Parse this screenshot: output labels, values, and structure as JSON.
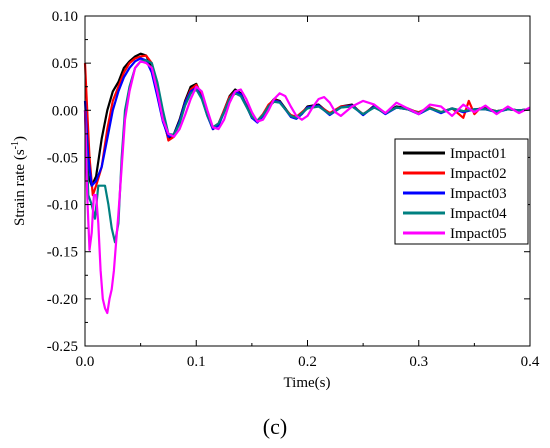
{
  "caption": "(c)",
  "chart_data": {
    "type": "line",
    "title": "",
    "xlabel": "Time(s)",
    "ylabel_main": "Strain rate (s",
    "ylabel_sup": "-1",
    "ylabel_close": ")",
    "xlim": [
      0.0,
      0.4
    ],
    "ylim": [
      -0.25,
      0.1
    ],
    "xticks": [
      0.0,
      0.1,
      0.2,
      0.3,
      0.4
    ],
    "xtick_labels": [
      "0.0",
      "0.1",
      "0.2",
      "0.3",
      "0.4"
    ],
    "yticks": [
      0.1,
      0.05,
      0.0,
      -0.05,
      -0.1,
      -0.15,
      -0.2,
      -0.25
    ],
    "ytick_labels": [
      "0.10",
      "0.05",
      "0.00",
      "-0.05",
      "-0.10",
      "-0.15",
      "-0.20",
      "-0.25"
    ],
    "grid": false,
    "legend_position": "right",
    "series": [
      {
        "name": "Impact01",
        "color": "#000000",
        "x": [
          0.0,
          0.003,
          0.006,
          0.01,
          0.015,
          0.02,
          0.025,
          0.03,
          0.035,
          0.04,
          0.045,
          0.05,
          0.055,
          0.06,
          0.065,
          0.07,
          0.075,
          0.08,
          0.085,
          0.09,
          0.095,
          0.1,
          0.105,
          0.11,
          0.115,
          0.12,
          0.125,
          0.13,
          0.135,
          0.14,
          0.145,
          0.15,
          0.155,
          0.16,
          0.165,
          0.17,
          0.175,
          0.18,
          0.185,
          0.19,
          0.195,
          0.2,
          0.21,
          0.22,
          0.23,
          0.24,
          0.25,
          0.26,
          0.27,
          0.28,
          0.29,
          0.3,
          0.31,
          0.32,
          0.33,
          0.34,
          0.35,
          0.36,
          0.37,
          0.38,
          0.39,
          0.4
        ],
        "y": [
          0.0,
          -0.07,
          -0.08,
          -0.07,
          -0.03,
          0.0,
          0.02,
          0.03,
          0.045,
          0.052,
          0.057,
          0.06,
          0.058,
          0.045,
          0.02,
          -0.01,
          -0.03,
          -0.025,
          -0.01,
          0.01,
          0.025,
          0.028,
          0.015,
          -0.005,
          -0.02,
          -0.015,
          0.0,
          0.015,
          0.022,
          0.018,
          0.005,
          -0.008,
          -0.012,
          -0.005,
          0.005,
          0.012,
          0.01,
          0.002,
          -0.006,
          -0.008,
          -0.003,
          0.004,
          0.006,
          -0.004,
          0.004,
          0.006,
          -0.005,
          0.005,
          -0.003,
          0.004,
          0.002,
          -0.003,
          0.003,
          -0.002,
          0.002,
          -0.001,
          0.001,
          0.002,
          -0.001,
          0.001,
          0.0,
          0.001
        ]
      },
      {
        "name": "Impact02",
        "color": "#ff0000",
        "x": [
          0.0,
          0.002,
          0.004,
          0.007,
          0.01,
          0.015,
          0.02,
          0.025,
          0.03,
          0.035,
          0.04,
          0.045,
          0.05,
          0.055,
          0.06,
          0.065,
          0.07,
          0.075,
          0.08,
          0.085,
          0.09,
          0.095,
          0.1,
          0.105,
          0.11,
          0.115,
          0.12,
          0.125,
          0.13,
          0.135,
          0.14,
          0.145,
          0.15,
          0.155,
          0.16,
          0.165,
          0.17,
          0.175,
          0.18,
          0.185,
          0.19,
          0.2,
          0.21,
          0.22,
          0.23,
          0.24,
          0.25,
          0.26,
          0.27,
          0.28,
          0.29,
          0.3,
          0.31,
          0.32,
          0.33,
          0.34,
          0.345,
          0.35,
          0.355,
          0.36,
          0.37,
          0.38,
          0.39,
          0.4
        ],
        "y": [
          0.05,
          0.0,
          -0.05,
          -0.09,
          -0.08,
          -0.06,
          -0.02,
          0.01,
          0.025,
          0.04,
          0.05,
          0.055,
          0.057,
          0.058,
          0.05,
          0.025,
          -0.005,
          -0.032,
          -0.028,
          -0.012,
          0.008,
          0.022,
          0.027,
          0.016,
          -0.004,
          -0.018,
          -0.014,
          0.0,
          0.014,
          0.02,
          0.017,
          0.006,
          -0.007,
          -0.011,
          -0.004,
          0.006,
          0.011,
          0.009,
          0.001,
          -0.005,
          -0.007,
          0.003,
          0.005,
          -0.003,
          0.004,
          0.005,
          -0.004,
          0.004,
          -0.003,
          0.003,
          0.001,
          -0.002,
          0.003,
          -0.002,
          0.002,
          -0.008,
          0.01,
          -0.004,
          0.002,
          0.001,
          -0.001,
          0.001,
          0.0,
          0.001
        ]
      },
      {
        "name": "Impact03",
        "color": "#0000ff",
        "x": [
          0.0,
          0.003,
          0.006,
          0.01,
          0.015,
          0.02,
          0.025,
          0.03,
          0.035,
          0.04,
          0.045,
          0.05,
          0.055,
          0.06,
          0.065,
          0.07,
          0.075,
          0.08,
          0.085,
          0.09,
          0.095,
          0.1,
          0.105,
          0.11,
          0.115,
          0.12,
          0.125,
          0.13,
          0.135,
          0.14,
          0.145,
          0.15,
          0.155,
          0.16,
          0.165,
          0.17,
          0.175,
          0.18,
          0.185,
          0.19,
          0.195,
          0.2,
          0.21,
          0.22,
          0.23,
          0.24,
          0.25,
          0.26,
          0.27,
          0.28,
          0.29,
          0.3,
          0.31,
          0.32,
          0.33,
          0.34,
          0.35,
          0.36,
          0.37,
          0.38,
          0.39,
          0.4
        ],
        "y": [
          0.01,
          -0.05,
          -0.08,
          -0.075,
          -0.06,
          -0.03,
          0.0,
          0.02,
          0.035,
          0.045,
          0.052,
          0.055,
          0.053,
          0.04,
          0.015,
          -0.012,
          -0.028,
          -0.026,
          -0.012,
          0.008,
          0.02,
          0.024,
          0.013,
          -0.006,
          -0.02,
          -0.016,
          -0.002,
          0.012,
          0.02,
          0.017,
          0.005,
          -0.008,
          -0.013,
          -0.006,
          0.004,
          0.01,
          0.009,
          0.001,
          -0.007,
          -0.009,
          -0.004,
          0.003,
          0.005,
          -0.005,
          0.003,
          0.005,
          -0.005,
          0.004,
          -0.004,
          0.003,
          0.001,
          -0.004,
          0.002,
          -0.003,
          0.002,
          -0.002,
          0.001,
          0.001,
          -0.002,
          0.001,
          0.0,
          0.001
        ]
      },
      {
        "name": "Impact04",
        "color": "#008080",
        "x": [
          0.0,
          0.003,
          0.006,
          0.009,
          0.012,
          0.015,
          0.018,
          0.021,
          0.024,
          0.027,
          0.03,
          0.033,
          0.036,
          0.04,
          0.045,
          0.05,
          0.055,
          0.06,
          0.065,
          0.07,
          0.075,
          0.08,
          0.085,
          0.09,
          0.095,
          0.1,
          0.105,
          0.11,
          0.115,
          0.12,
          0.125,
          0.13,
          0.135,
          0.14,
          0.145,
          0.15,
          0.155,
          0.16,
          0.165,
          0.17,
          0.175,
          0.18,
          0.185,
          0.19,
          0.2,
          0.21,
          0.22,
          0.23,
          0.24,
          0.25,
          0.26,
          0.27,
          0.28,
          0.29,
          0.3,
          0.31,
          0.32,
          0.33,
          0.34,
          0.35,
          0.36,
          0.37,
          0.38,
          0.39,
          0.4
        ],
        "y": [
          0.0,
          -0.09,
          -0.1,
          -0.115,
          -0.08,
          -0.08,
          -0.08,
          -0.1,
          -0.125,
          -0.14,
          -0.12,
          -0.05,
          0.0,
          0.025,
          0.045,
          0.052,
          0.053,
          0.05,
          0.03,
          0.0,
          -0.025,
          -0.026,
          -0.014,
          0.005,
          0.018,
          0.022,
          0.012,
          -0.006,
          -0.018,
          -0.014,
          -0.002,
          0.012,
          0.018,
          0.015,
          0.004,
          -0.007,
          -0.011,
          -0.005,
          0.004,
          0.009,
          0.008,
          0.001,
          -0.006,
          -0.008,
          0.002,
          0.004,
          -0.004,
          0.003,
          0.004,
          -0.004,
          0.003,
          -0.003,
          0.003,
          0.001,
          -0.003,
          0.002,
          -0.002,
          0.002,
          -0.001,
          0.001,
          0.001,
          -0.001,
          0.001,
          0.0,
          0.001
        ]
      },
      {
        "name": "Impact05",
        "color": "#ff00ff",
        "x": [
          0.0,
          0.002,
          0.004,
          0.006,
          0.008,
          0.01,
          0.012,
          0.014,
          0.016,
          0.018,
          0.02,
          0.022,
          0.024,
          0.026,
          0.028,
          0.03,
          0.033,
          0.036,
          0.04,
          0.045,
          0.05,
          0.055,
          0.06,
          0.065,
          0.07,
          0.075,
          0.08,
          0.085,
          0.09,
          0.095,
          0.1,
          0.105,
          0.11,
          0.115,
          0.12,
          0.125,
          0.13,
          0.135,
          0.14,
          0.145,
          0.15,
          0.155,
          0.16,
          0.165,
          0.17,
          0.175,
          0.18,
          0.185,
          0.19,
          0.195,
          0.2,
          0.205,
          0.21,
          0.215,
          0.22,
          0.225,
          0.23,
          0.24,
          0.25,
          0.26,
          0.27,
          0.28,
          0.29,
          0.3,
          0.31,
          0.32,
          0.33,
          0.34,
          0.35,
          0.36,
          0.37,
          0.38,
          0.39,
          0.4
        ],
        "y": [
          0.0,
          -0.09,
          -0.148,
          -0.13,
          -0.09,
          -0.09,
          -0.12,
          -0.17,
          -0.2,
          -0.21,
          -0.215,
          -0.2,
          -0.19,
          -0.17,
          -0.14,
          -0.11,
          -0.06,
          -0.01,
          0.02,
          0.045,
          0.052,
          0.05,
          0.045,
          0.02,
          -0.01,
          -0.025,
          -0.028,
          -0.02,
          -0.005,
          0.012,
          0.025,
          0.02,
          0.0,
          -0.018,
          -0.02,
          -0.01,
          0.008,
          0.02,
          0.022,
          0.012,
          -0.002,
          -0.012,
          -0.01,
          0.0,
          0.012,
          0.018,
          0.015,
          0.004,
          -0.006,
          -0.01,
          -0.006,
          0.004,
          0.012,
          0.014,
          0.008,
          -0.002,
          -0.006,
          0.004,
          0.01,
          0.006,
          -0.003,
          0.008,
          0.002,
          -0.004,
          0.006,
          0.004,
          -0.006,
          0.006,
          -0.002,
          0.005,
          -0.004,
          0.004,
          -0.003,
          0.003
        ]
      }
    ]
  }
}
